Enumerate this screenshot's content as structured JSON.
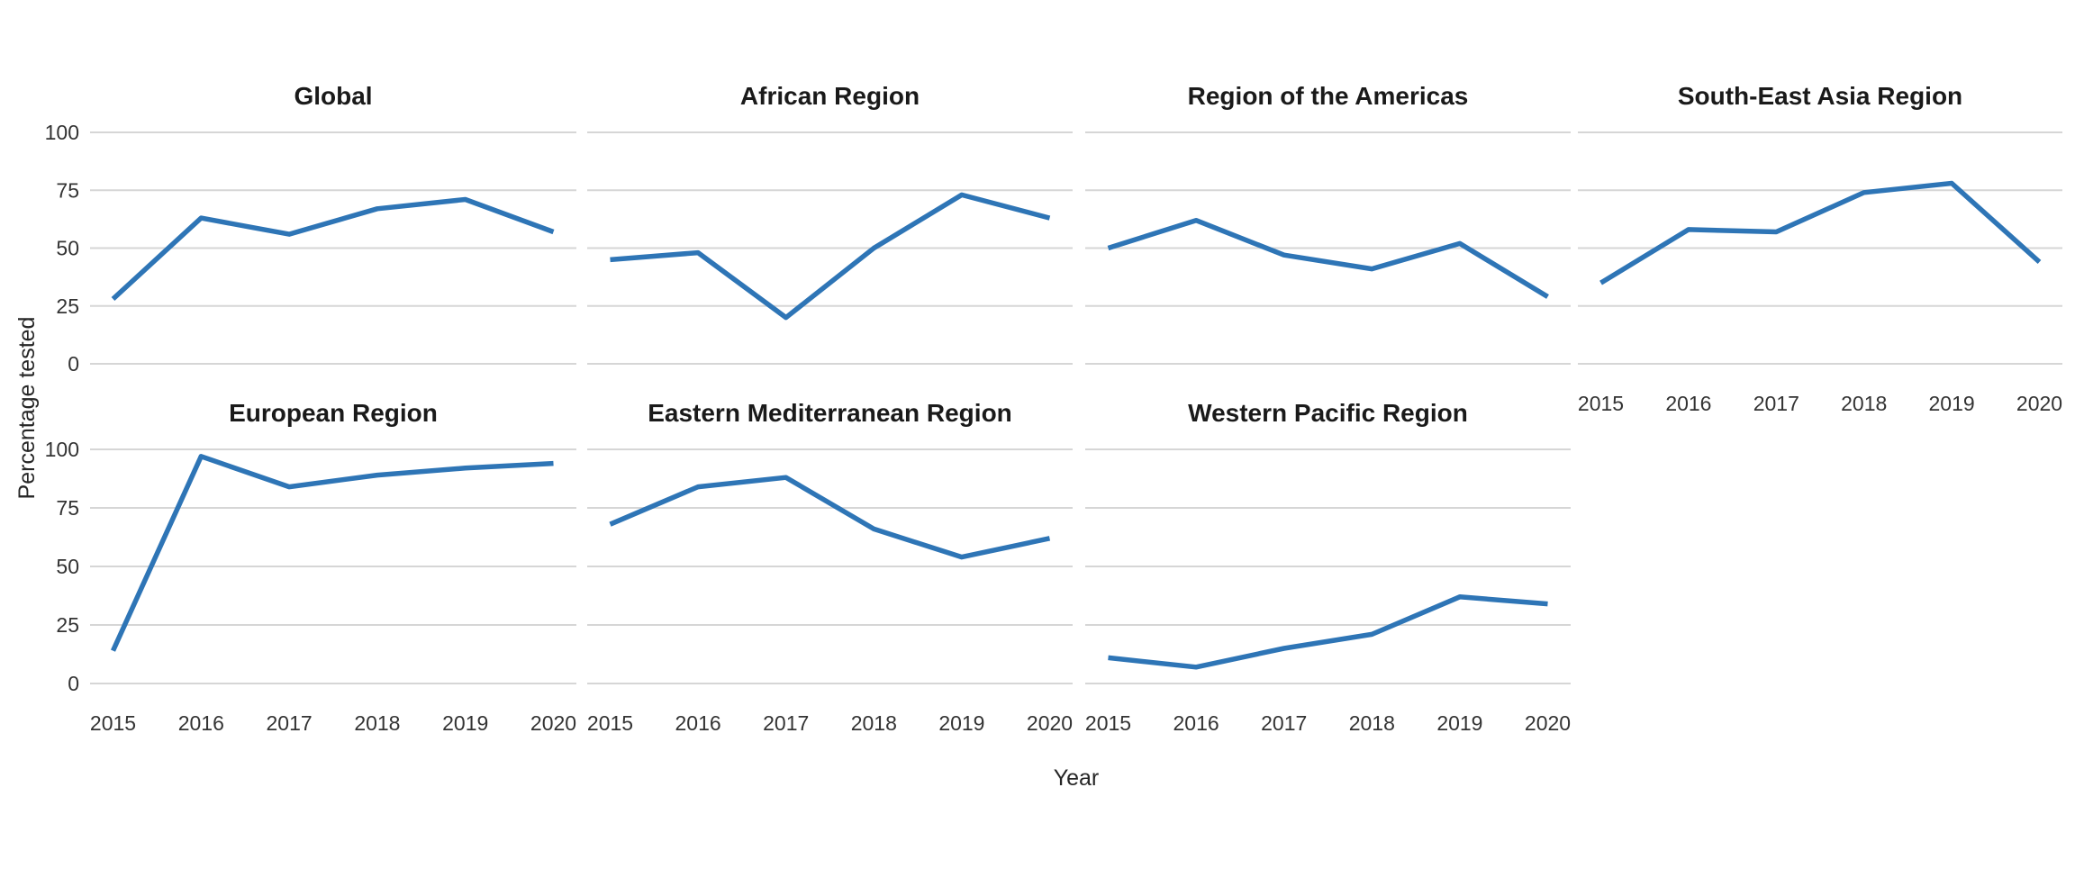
{
  "figure": {
    "background": "#ffffff",
    "y_axis_title": "Percentage tested",
    "x_axis_title": "Year"
  },
  "style": {
    "line_color": "#2E75B6",
    "grid_color": "#D6D6D6",
    "title_color": "#1A1A1A",
    "tick_label_color": "#333333",
    "axis_title_color": "#262626"
  },
  "chart_data": {
    "type": "line",
    "x": [
      2015,
      2016,
      2017,
      2018,
      2019,
      2020
    ],
    "x_tick_labels": [
      "2015",
      "2016",
      "2017",
      "2018",
      "2019",
      "2020"
    ],
    "xlabel": "Year",
    "ylabel": "Percentage tested",
    "ylim": [
      0,
      100
    ],
    "yticks": [
      0,
      25,
      50,
      75,
      100
    ],
    "grid": "horizontal major gridlines only, light gray, white background",
    "legend": "none",
    "layout": "facet grid, 2 rows x 4 columns, 7 panels, single blue line per panel",
    "facets": [
      {
        "title": "Global",
        "row": 0,
        "col": 0,
        "values": [
          28,
          63,
          56,
          67,
          71,
          57
        ],
        "show_x_axis": false
      },
      {
        "title": "African Region",
        "row": 0,
        "col": 1,
        "values": [
          45,
          48,
          20,
          50,
          73,
          63
        ],
        "show_x_axis": false
      },
      {
        "title": "Region of the Americas",
        "row": 0,
        "col": 2,
        "values": [
          50,
          62,
          47,
          41,
          52,
          29
        ],
        "show_x_axis": false
      },
      {
        "title": "South-East Asia Region",
        "row": 0,
        "col": 3,
        "values": [
          35,
          58,
          57,
          74,
          78,
          44
        ],
        "show_x_axis": true
      },
      {
        "title": "European Region",
        "row": 1,
        "col": 0,
        "values": [
          14,
          97,
          84,
          89,
          92,
          94
        ],
        "show_x_axis": true
      },
      {
        "title": "Eastern Mediterranean Region",
        "row": 1,
        "col": 1,
        "values": [
          68,
          84,
          88,
          66,
          54,
          62
        ],
        "show_x_axis": true
      },
      {
        "title": "Western Pacific Region",
        "row": 1,
        "col": 2,
        "values": [
          11,
          7,
          15,
          21,
          37,
          34
        ],
        "show_x_axis": true
      }
    ]
  }
}
